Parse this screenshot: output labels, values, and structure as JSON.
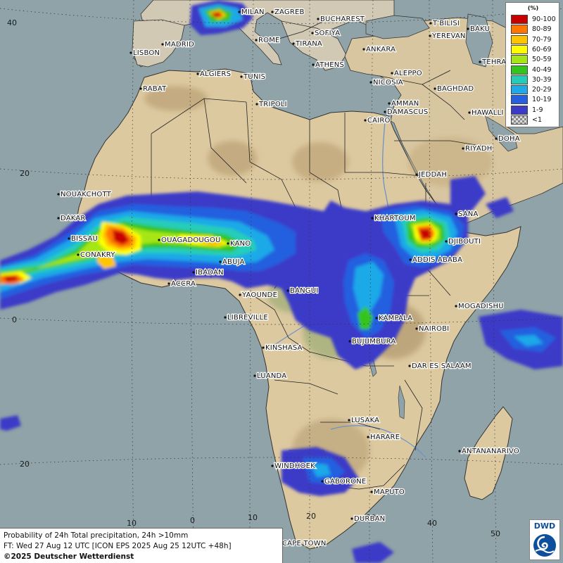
{
  "map": {
    "title_line1": "Probability of 24h Total precipitation, 24h >10mm",
    "title_line2": "FT: Wed 27 Aug 12 UTC [ICON EPS 2025 Aug 25 12UTC +48h]",
    "credit": "©2025 Deutscher Wetterdienst",
    "logo_text": "DWD",
    "colors": {
      "sea": "#8fa3a8",
      "land": "#ddc9a0",
      "border": "#222222"
    }
  },
  "legend": {
    "unit": "(%)",
    "classes": [
      {
        "label": "90-100",
        "color": "#c80000"
      },
      {
        "label": "80-89",
        "color": "#ff7700"
      },
      {
        "label": "70-79",
        "color": "#ffc400"
      },
      {
        "label": "60-69",
        "color": "#ffff00"
      },
      {
        "label": "50-59",
        "color": "#a6e619"
      },
      {
        "label": "40-49",
        "color": "#34c41e"
      },
      {
        "label": "30-39",
        "color": "#25cdb8"
      },
      {
        "label": "20-29",
        "color": "#1fa9e8"
      },
      {
        "label": "10-19",
        "color": "#2460e0"
      },
      {
        "label": "1-9",
        "color": "#3b3bc8"
      },
      {
        "label": "<1",
        "color": "checker"
      }
    ]
  },
  "grid_labels": {
    "lat": [
      "40",
      "20",
      "0",
      "20"
    ],
    "lon": [
      "10",
      "0",
      "10",
      "20",
      "30",
      "40",
      "50"
    ]
  },
  "cities": [
    "MILAN",
    "ZAGREB",
    "BUCHAREST",
    "MADRID",
    "ROME",
    "SOFIYA",
    "T'BILISI",
    "BAKU",
    "LISBON",
    "TIRANA",
    "ANKARA",
    "YEREVAN",
    "TEHRA",
    "ALGIERS",
    "TUNIS",
    "ATHENS",
    "ALEPPO",
    "RABAT",
    "NICOSIA",
    "BAGHDAD",
    "DAMASCUS",
    "AMMAN",
    "TRIPOLI",
    "HAWALLI",
    "CAIRO",
    "DOHA",
    "RIYADH",
    "JEDDAH",
    "NOUAKCHOTT",
    "SANA",
    "DAKAR",
    "KHARTOUM",
    "BISSAU",
    "OUAGADOUGOU",
    "KANO",
    "DJIBOUTI",
    "CONAKRY",
    "ABUJA",
    "ADDIS ABABA",
    "IBADAN",
    "ACCRA",
    "YAOUNDE",
    "BANGUI",
    "MOGADISHU",
    "LIBREVILLE",
    "KAMPALA",
    "NAIROBI",
    "KINSHASA",
    "BUJUMBURA",
    "DAR ES SALAAM",
    "LUANDA",
    "LUSAKA",
    "HARARE",
    "ANTANANARIVO",
    "WINDHOEK",
    "GABORONE",
    "MAPUTO",
    "DURBAN",
    "CAPE TOWN"
  ]
}
